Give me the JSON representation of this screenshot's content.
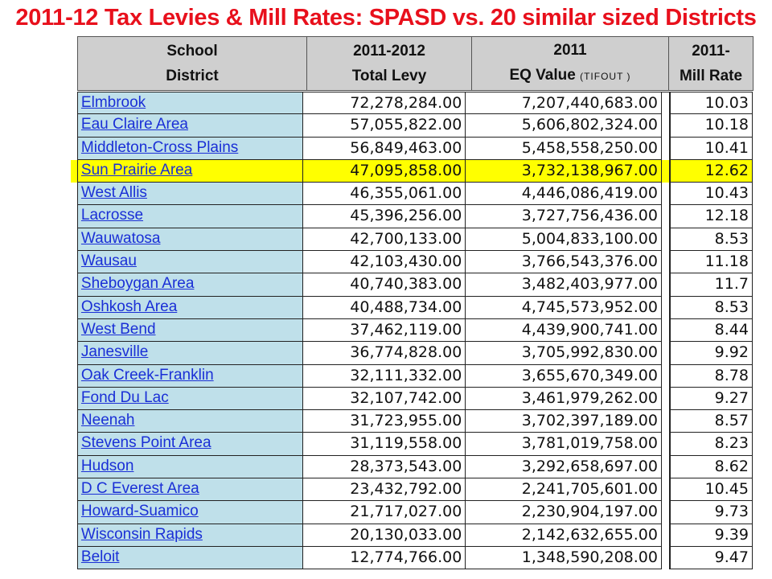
{
  "title": "2011-12 Tax Levies & Mill Rates: SPASD vs. 20 similar sized Districts",
  "header": {
    "school_1": "School",
    "school_2": "District",
    "levy_1": "2011-2012",
    "levy_2": "Total Levy",
    "eq_1": "2011",
    "eq_2": "EQ Value",
    "eq_note": "(TIFOUT )",
    "mill_1": "2011-",
    "mill_2": "Mill Rate"
  },
  "colors": {
    "title": "#e8101c",
    "name_cell": "#bfe0ea",
    "highlight": "#ffff00",
    "header_bg": "#cfcfcf",
    "link": "#1a2fd6"
  },
  "rows": [
    {
      "district": "Elmbrook",
      "levy": "72,278,284.00",
      "eq": "7,207,440,683.00",
      "mill": "10.03"
    },
    {
      "district": "Eau Claire Area",
      "levy": "57,055,822.00",
      "eq": "5,606,802,324.00",
      "mill": "10.18"
    },
    {
      "district": "Middleton-Cross Plains",
      "levy": "56,849,463.00",
      "eq": "5,458,558,250.00",
      "mill": "10.41"
    },
    {
      "district": "Sun Prairie Area",
      "levy": "47,095,858.00",
      "eq": "3,732,138,967.00",
      "mill": "12.62",
      "highlight": true
    },
    {
      "district": "West Allis",
      "levy": "46,355,061.00",
      "eq": "4,446,086,419.00",
      "mill": "10.43"
    },
    {
      "district": "Lacrosse",
      "levy": "45,396,256.00",
      "eq": "3,727,756,436.00",
      "mill": "12.18"
    },
    {
      "district": "Wauwatosa",
      "levy": "42,700,133.00",
      "eq": "5,004,833,100.00",
      "mill": "8.53"
    },
    {
      "district": "Wausau",
      "levy": "42,103,430.00",
      "eq": "3,766,543,376.00",
      "mill": "11.18"
    },
    {
      "district": "Sheboygan Area",
      "levy": "40,740,383.00",
      "eq": "3,482,403,977.00",
      "mill": "11.7"
    },
    {
      "district": "Oshkosh Area",
      "levy": "40,488,734.00",
      "eq": "4,745,573,952.00",
      "mill": "8.53"
    },
    {
      "district": "West Bend",
      "levy": "37,462,119.00",
      "eq": "4,439,900,741.00",
      "mill": "8.44"
    },
    {
      "district": "Janesville",
      "levy": "36,774,828.00",
      "eq": "3,705,992,830.00",
      "mill": "9.92"
    },
    {
      "district": "Oak Creek-Franklin",
      "levy": "32,111,332.00",
      "eq": "3,655,670,349.00",
      "mill": "8.78"
    },
    {
      "district": "Fond Du Lac",
      "levy": "32,107,742.00",
      "eq": "3,461,979,262.00",
      "mill": "9.27"
    },
    {
      "district": "Neenah",
      "levy": "31,723,955.00",
      "eq": "3,702,397,189.00",
      "mill": "8.57"
    },
    {
      "district": "Stevens Point Area",
      "levy": "31,119,558.00",
      "eq": "3,781,019,758.00",
      "mill": "8.23"
    },
    {
      "district": "Hudson",
      "levy": "28,373,543.00",
      "eq": "3,292,658,697.00",
      "mill": "8.62"
    },
    {
      "district": "D C Everest Area",
      "levy": "23,432,792.00",
      "eq": "2,241,705,601.00",
      "mill": "10.45"
    },
    {
      "district": "Howard-Suamico",
      "levy": "21,717,027.00",
      "eq": "2,230,904,197.00",
      "mill": "9.73"
    },
    {
      "district": "Wisconsin Rapids",
      "levy": "20,130,033.00",
      "eq": "2,142,632,655.00",
      "mill": "9.39"
    },
    {
      "district": "Beloit",
      "levy": "12,774,766.00",
      "eq": "1,348,590,208.00",
      "mill": "9.47"
    }
  ]
}
